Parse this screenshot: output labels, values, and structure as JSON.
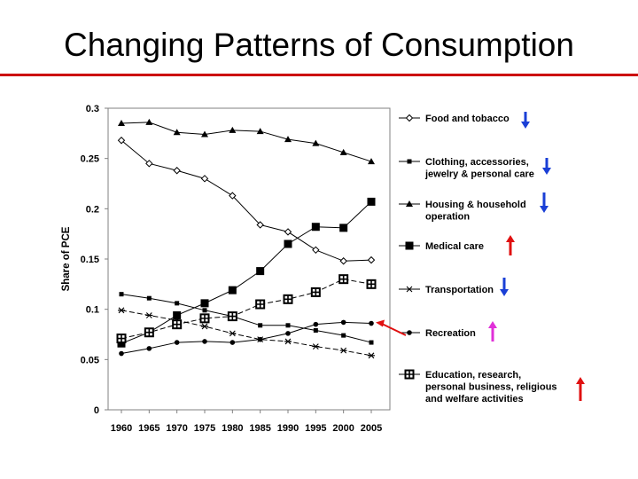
{
  "slide": {
    "title": "Changing Patterns of Consumption"
  },
  "chart_data": {
    "type": "line",
    "title": "",
    "ylabel": "Share of PCE",
    "xlabel": "",
    "ylim": [
      0,
      0.3
    ],
    "yticks": [
      0,
      0.05,
      0.1,
      0.15,
      0.2,
      0.25,
      0.3
    ],
    "ytick_labels": [
      "0",
      "0.05",
      "0.1",
      "0.15",
      "0.2",
      "0.25",
      "0.3"
    ],
    "x": [
      1960,
      1965,
      1970,
      1975,
      1980,
      1985,
      1990,
      1995,
      2000,
      2005
    ],
    "xtick_labels": [
      "1960",
      "1965",
      "1970",
      "1975",
      "1980",
      "1985",
      "1990",
      "1995",
      "2000",
      "2005"
    ],
    "legend_position": "right",
    "grid": false,
    "series": [
      {
        "name": "Food and tobacco",
        "marker": "diamond-open",
        "trend": "down",
        "arrow_color": "#1a3fd6",
        "x": [
          1960,
          1965,
          1970,
          1975,
          1980,
          1985,
          1990,
          1995,
          2000,
          2005
        ],
        "values": [
          0.268,
          0.245,
          0.238,
          0.23,
          0.213,
          0.184,
          0.177,
          0.159,
          0.148,
          0.149
        ]
      },
      {
        "name": "Clothing, accessories, jewelry & personal care",
        "marker": "square-small",
        "trend": "down",
        "arrow_color": "#1a3fd6",
        "x": [
          1960,
          1965,
          1970,
          1975,
          1980,
          1985,
          1990,
          1995,
          2000,
          2005
        ],
        "values": [
          0.115,
          0.111,
          0.106,
          0.099,
          0.093,
          0.084,
          0.084,
          0.079,
          0.074,
          0.067
        ]
      },
      {
        "name": "Housing & household operation",
        "marker": "triangle",
        "trend": "down",
        "arrow_color": "#1a3fd6",
        "x": [
          1960,
          1965,
          1970,
          1975,
          1980,
          1985,
          1990,
          1995,
          2000,
          2005
        ],
        "values": [
          0.285,
          0.286,
          0.276,
          0.274,
          0.278,
          0.277,
          0.269,
          0.265,
          0.256,
          0.247
        ]
      },
      {
        "name": "Medical care",
        "marker": "square-large",
        "trend": "up",
        "arrow_color": "#e01010",
        "x": [
          1960,
          1965,
          1970,
          1975,
          1980,
          1985,
          1990,
          1995,
          2000,
          2005
        ],
        "values": [
          0.066,
          0.077,
          0.094,
          0.106,
          0.119,
          0.138,
          0.165,
          0.182,
          0.181,
          0.207
        ]
      },
      {
        "name": "Transportation",
        "marker": "star",
        "trend": "down",
        "arrow_color": "#1a3fd6",
        "x": [
          1960,
          1965,
          1970,
          1975,
          1980,
          1985,
          1990,
          1995,
          2000,
          2005
        ],
        "values": [
          0.099,
          0.094,
          0.089,
          0.083,
          0.076,
          0.07,
          0.068,
          0.063,
          0.059,
          0.054
        ]
      },
      {
        "name": "Recreation",
        "marker": "circle",
        "trend": "up",
        "arrow_color": "#e030d8",
        "x": [
          1960,
          1965,
          1970,
          1975,
          1980,
          1985,
          1990,
          1995,
          2000,
          2005
        ],
        "values": [
          0.056,
          0.061,
          0.067,
          0.068,
          0.067,
          0.07,
          0.076,
          0.085,
          0.087,
          0.086
        ]
      },
      {
        "name": "Education, research, personal business, religious and welfare activities",
        "marker": "square-plus",
        "trend": "up",
        "arrow_color": "#e01010",
        "x": [
          1960,
          1965,
          1970,
          1975,
          1980,
          1985,
          1990,
          1995,
          2000,
          2005
        ],
        "values": [
          0.071,
          0.077,
          0.085,
          0.091,
          0.093,
          0.105,
          0.11,
          0.117,
          0.13,
          0.125
        ]
      }
    ],
    "legend_labels": [
      [
        "Food and tobacco"
      ],
      [
        "Clothing, accessories,",
        "jewelry & personal care"
      ],
      [
        "Housing & household",
        "operation"
      ],
      [
        "Medical care"
      ],
      [
        "Transportation"
      ],
      [
        "Recreation"
      ],
      [
        "Education, research,",
        "personal business, religious",
        "and welfare activities"
      ]
    ],
    "annotations": [
      {
        "type": "arrow",
        "target_series": "Recreation",
        "target_x": 2005,
        "color": "#e01010"
      }
    ]
  }
}
